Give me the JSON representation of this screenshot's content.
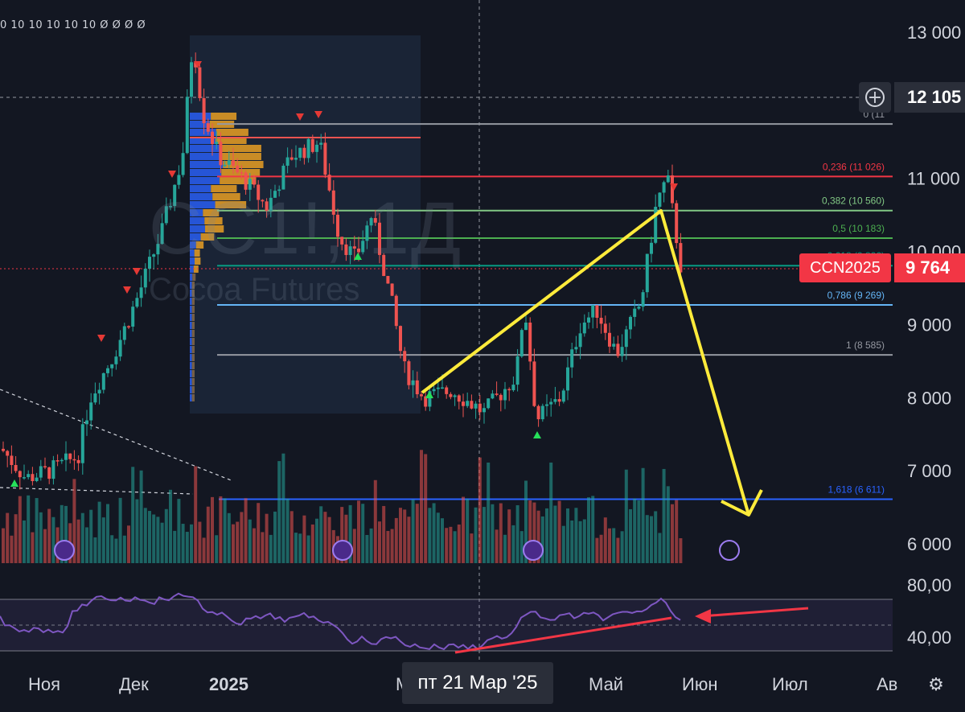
{
  "top_indicator_flags": "0 10 10 10 10 10 Ø Ø Ø Ø",
  "watermark": {
    "symbol": "CC1!, 1Д",
    "name": "Cocoa Futures"
  },
  "price_axis": {
    "ticks": [
      "13 000",
      "11 000",
      "10 000",
      "9 000",
      "8 000",
      "7 000",
      "6 000"
    ],
    "crosshair_price": "12 105",
    "symbol_tag": "CCN2025",
    "last_price": "9 764"
  },
  "rsi_axis": {
    "ticks": [
      "80,00",
      "40,00"
    ]
  },
  "time_axis": {
    "ticks": [
      "Ноя",
      "Дек",
      "2025",
      "М",
      "Май",
      "Июн",
      "Июл",
      "Ав"
    ],
    "crosshair_date": "пт 21 Мар '25"
  },
  "fib_levels": [
    {
      "ratio": "0 (11",
      "price": 11744,
      "color": "#9598a1"
    },
    {
      "ratio": "0,236 (11 026)",
      "price": 11026,
      "color": "#f23645"
    },
    {
      "ratio": "0,382 (10 560)",
      "price": 10560,
      "color": "#81c784"
    },
    {
      "ratio": "0,5 (10 183)",
      "price": 10183,
      "color": "#4caf50"
    },
    {
      "ratio": "0,618 (9 806)",
      "price": 9806,
      "color": "#089981"
    },
    {
      "ratio": "0,786 (9 269)",
      "price": 9269,
      "color": "#64b5f6"
    },
    {
      "ratio": "1 (8 585)",
      "price": 8585,
      "color": "#9598a1"
    },
    {
      "ratio": "1,618 (6 611)",
      "price": 6611,
      "color": "#2962ff"
    }
  ],
  "chart_data": {
    "type": "candlestick",
    "instrument": "Cocoa Futures",
    "symbol": "CCN2025",
    "last_price": 9764,
    "y_ticks": [
      13000,
      11000,
      10000,
      9000,
      8000,
      7000,
      6000
    ],
    "x_ticks": [
      "Ноя",
      "Дек",
      "2025",
      "Май",
      "Июн",
      "Июл"
    ],
    "price_path_approx": [
      {
        "x": "Ноя",
        "close": 7100
      },
      {
        "x": "Дек",
        "close": 8800
      },
      {
        "x": "Дек",
        "close": 12900
      },
      {
        "x": "2025",
        "close": 11200
      },
      {
        "x": "2025",
        "close": 10500
      },
      {
        "x": "2025",
        "close": 9900
      },
      {
        "x": "пт 21 Мар '25",
        "close": 7900
      },
      {
        "x": "Май",
        "close": 9000
      },
      {
        "x": "Май",
        "close": 10800
      },
      {
        "x": "Июн",
        "close": 9764
      }
    ],
    "rsi": {
      "upper": 70,
      "lower": 30,
      "ticks": [
        80,
        40
      ]
    },
    "projection": {
      "from_price": 10560,
      "to_price": 6400
    }
  },
  "colors": {
    "up": "#26a69a",
    "down": "#ef5350",
    "rsi": "#7e57c2",
    "annotation": "#ffeb3b",
    "arrow": "#f23645",
    "bg": "#131722"
  }
}
